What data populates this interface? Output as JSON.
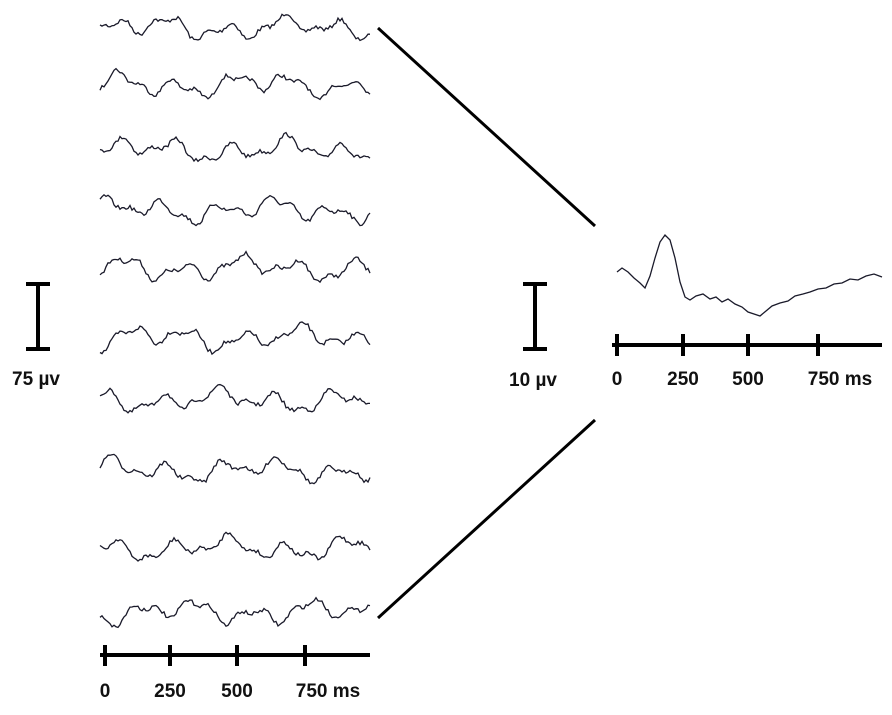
{
  "left_panel": {
    "scale_bar_label": "75 µv",
    "axis_labels": [
      "0",
      "250",
      "500",
      "750 ms"
    ]
  },
  "right_panel": {
    "scale_bar_label": "10 µv",
    "axis_labels": [
      "0",
      "250",
      "500",
      "750 ms"
    ]
  }
}
